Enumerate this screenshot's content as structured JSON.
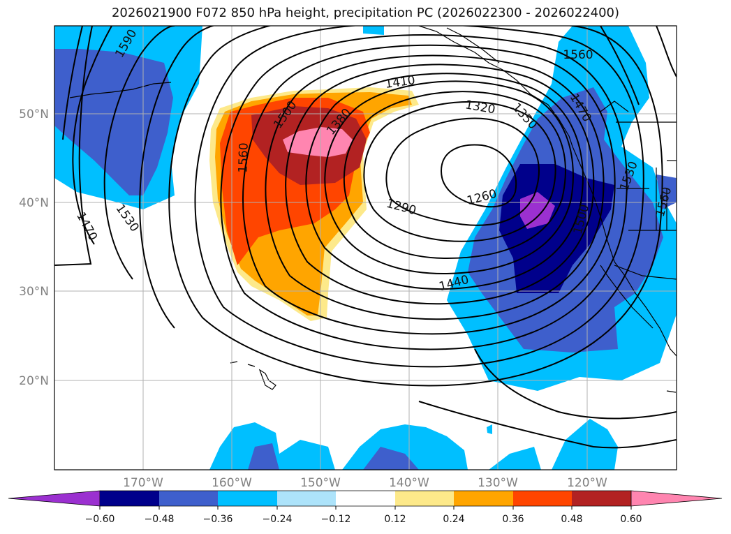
{
  "title": "2026021900 F072 850 hPa height, precipitation PC (2026022300 - 2026022400)",
  "map": {
    "lat_labels": [
      "50°N",
      "40°N",
      "30°N",
      "20°N"
    ],
    "lon_labels": [
      "170°W",
      "160°W",
      "150°W",
      "140°W",
      "130°W",
      "120°W"
    ],
    "contour_labels": [
      "1590",
      "1500",
      "1410",
      "1560",
      "1320",
      "1380",
      "1350",
      "1470",
      "1560",
      "1260",
      "1530",
      "1290",
      "1560",
      "1530",
      "1470",
      "1440",
      "1500"
    ]
  },
  "colorbar": {
    "ticks": [
      "−0.60",
      "−0.48",
      "−0.36",
      "−0.24",
      "−0.12",
      "0.12",
      "0.24",
      "0.36",
      "0.48",
      "0.60"
    ],
    "colors": {
      "below": "#9b30d0",
      "b1": "#00008b",
      "b2": "#3e5fcc",
      "b3": "#00bfff",
      "b4": "#ade3fa",
      "mid": "#ffffff",
      "r1": "#fde98a",
      "r2": "#ffa500",
      "r3": "#ff4500",
      "r4": "#b22222",
      "above": "#ff85b0"
    }
  }
}
